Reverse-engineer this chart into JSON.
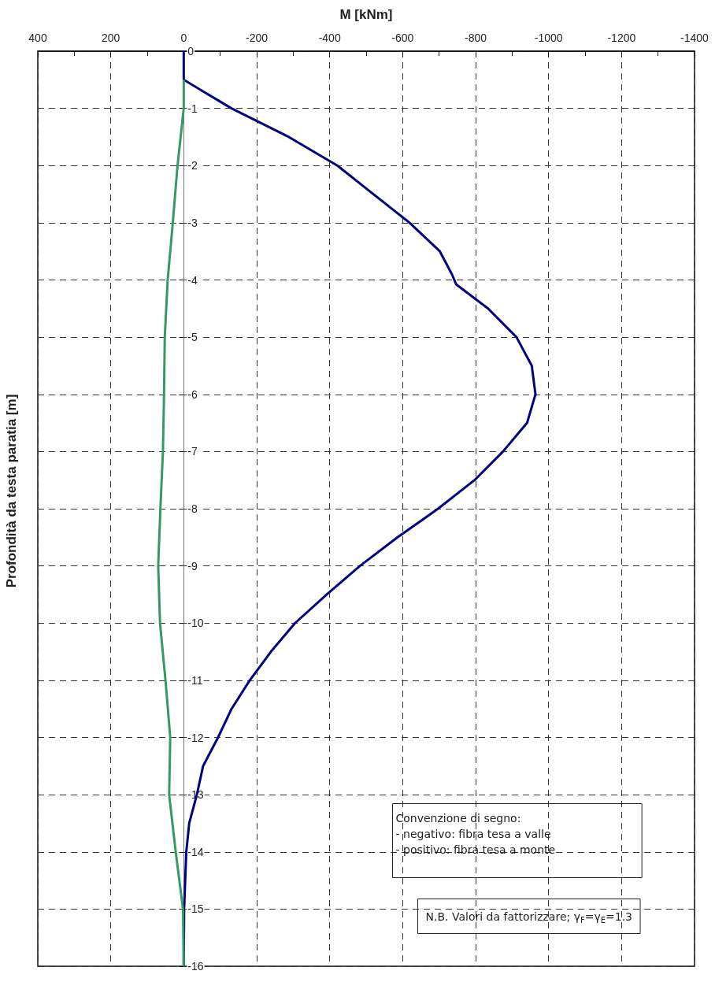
{
  "chart_data": {
    "type": "line",
    "xlabel": "M [kNm]",
    "ylabel": "Profondità da testa paratia [m]",
    "xlim": [
      400,
      -1400
    ],
    "xticks": [
      400,
      {
        "value": 300,
        "label": null
      },
      200,
      {
        "value": 100,
        "label": null
      },
      0,
      {
        "value": -100,
        "label": null
      },
      -200,
      {
        "value": -300,
        "label": null
      },
      -400,
      {
        "value": -500,
        "label": null
      },
      -600,
      {
        "value": -700,
        "label": null
      },
      -800,
      {
        "value": -900,
        "label": null
      },
      -1000,
      {
        "value": -1100,
        "label": null
      },
      -1200,
      {
        "value": -1300,
        "label": null
      },
      -1400
    ],
    "ylim": [
      -16,
      0
    ],
    "yticks": [
      0,
      -1,
      -2,
      -3,
      -4,
      -5,
      -6,
      -7,
      -8,
      -9,
      -10,
      -11,
      -12,
      -13,
      -14,
      -15,
      -16
    ],
    "grid": true,
    "marker": "none",
    "line_style": "solid",
    "series": [
      {
        "color": "#000080",
        "x": [
          0,
          0,
          -131,
          -288,
          -421,
          -520,
          -619,
          -702,
          -735,
          -747,
          -834,
          -912,
          -954,
          -964,
          -941,
          -875,
          -797,
          -697,
          -586,
          -483,
          -392,
          -305,
          -239,
          -181,
          -131,
          -94,
          -53,
          -36,
          -15,
          -7,
          -1,
          0
        ],
        "values": [
          0,
          -0.5,
          -1,
          -1.5,
          -2,
          -2.5,
          -3,
          -3.5,
          -3.9,
          -4.08,
          -4.5,
          -5,
          -5.5,
          -6,
          -6.5,
          -7,
          -7.5,
          -8,
          -8.5,
          -9,
          -9.5,
          -10,
          -10.5,
          -11,
          -11.5,
          -12,
          -12.5,
          -13,
          -13.5,
          -14,
          -15,
          -16
        ]
      },
      {
        "color": "#339966",
        "x": [
          0,
          0,
          17,
          30,
          44,
          52,
          54,
          57,
          64,
          70,
          65,
          50,
          37,
          40,
          22,
          2,
          0
        ],
        "values": [
          -0.5,
          -1,
          -2,
          -3,
          -4,
          -5,
          -6,
          -7,
          -8,
          -9,
          -10,
          -11,
          -12,
          -13,
          -14,
          -15,
          -16
        ]
      }
    ],
    "annotations": [
      "Convenzione di segno:\n- negativo: fibra tesa a valle\n- positivo: fibra tesa a monte",
      "N.B. Valori da fattorizzare; γ$_{F}$=γ$_{E}$=1.3"
    ]
  }
}
